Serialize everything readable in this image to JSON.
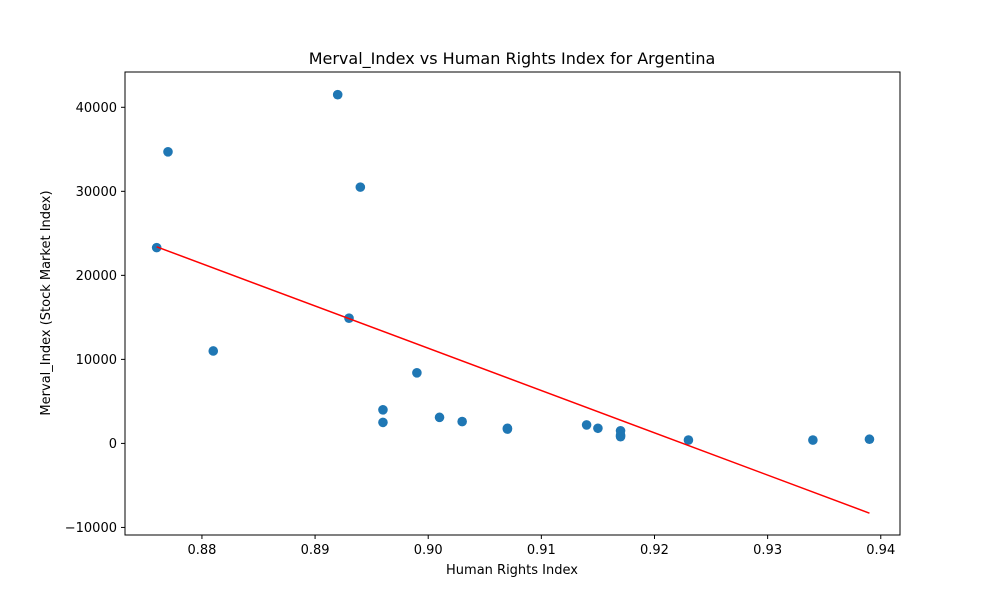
{
  "chart_data": {
    "type": "scatter",
    "title": "Merval_Index vs Human Rights Index for Argentina",
    "xlabel": "Human Rights Index",
    "ylabel": "Merval_Index (Stock Market Index)",
    "xlim": [
      0.8732,
      0.9417
    ],
    "ylim": [
      -10900,
      44200
    ],
    "xticks": [
      0.88,
      0.89,
      0.9,
      0.91,
      0.92,
      0.93,
      0.94
    ],
    "xtick_labels": [
      "0.88",
      "0.89",
      "0.90",
      "0.91",
      "0.92",
      "0.93",
      "0.94"
    ],
    "yticks": [
      -10000,
      0,
      10000,
      20000,
      30000,
      40000
    ],
    "ytick_labels": [
      "−10000",
      "0",
      "10000",
      "20000",
      "30000",
      "40000"
    ],
    "grid": false,
    "colors": {
      "points": "#1f77b4",
      "trend": "#ff0000"
    },
    "series": [
      {
        "type": "scatter",
        "x": [
          0.876,
          0.877,
          0.881,
          0.892,
          0.893,
          0.894,
          0.896,
          0.896,
          0.899,
          0.901,
          0.903,
          0.907,
          0.907,
          0.914,
          0.915,
          0.917,
          0.917,
          0.917,
          0.923,
          0.934,
          0.939
        ],
        "y": [
          23300,
          34700,
          11000,
          41500,
          14900,
          30500,
          4000,
          2500,
          8400,
          3100,
          2600,
          1800,
          1700,
          2200,
          1800,
          1500,
          1000,
          800,
          400,
          400,
          500
        ]
      },
      {
        "type": "line",
        "x": [
          0.876,
          0.939
        ],
        "y": [
          23400,
          -8300
        ]
      }
    ]
  }
}
